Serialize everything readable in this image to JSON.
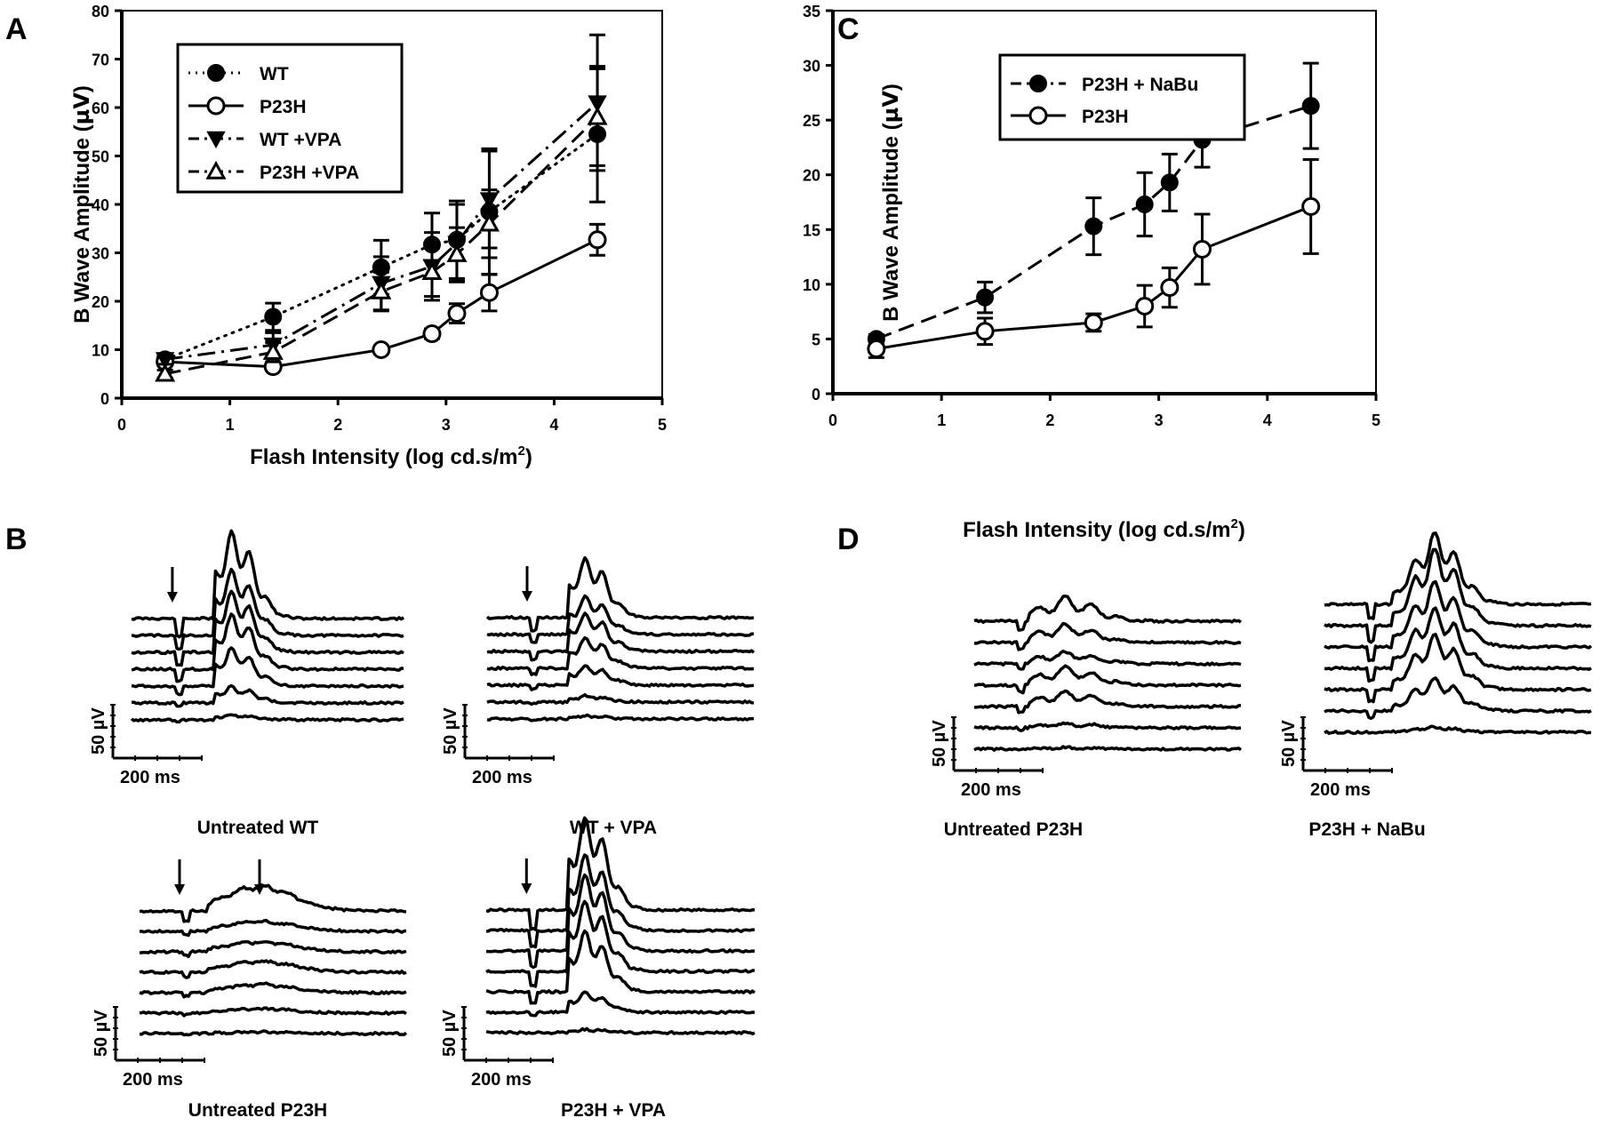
{
  "chart_data": [
    {
      "panel": "A",
      "type": "line",
      "title": "",
      "xlabel": "Flash Intensity (log cd.s/m2)",
      "ylabel": "B Wave Amplitude (µV)",
      "xlim": [
        0,
        5
      ],
      "ylim": [
        0,
        80
      ],
      "xticks": [
        "0",
        "1",
        "2",
        "3",
        "4",
        "5"
      ],
      "yticks": [
        "0",
        "10",
        "20",
        "30",
        "40",
        "50",
        "60",
        "70",
        "80"
      ],
      "legend": "top-left",
      "grid": false,
      "x": [
        0.4,
        1.4,
        2.4,
        2.87,
        3.1,
        3.4,
        4.4
      ],
      "series": [
        {
          "name": "WT",
          "marker": "filled-circle",
          "line": "dotted",
          "values": [
            8.0,
            16.8,
            27.0,
            31.7,
            32.7,
            38.5,
            54.5
          ],
          "errors": [
            1.2,
            2.8,
            5.6,
            6.5,
            8.0,
            13.0,
            14.0
          ]
        },
        {
          "name": "P23H",
          "marker": "open-circle",
          "line": "solid",
          "values": [
            7.5,
            6.5,
            10.0,
            13.3,
            17.5,
            21.8,
            32.7
          ],
          "errors": [
            0.8,
            0.6,
            0.6,
            1.0,
            2.0,
            3.8,
            3.2
          ]
        },
        {
          "name": "WT +VPA",
          "marker": "filled-triangle-down",
          "line": "dash-dot",
          "values": [
            8.0,
            11.0,
            23.7,
            27.2,
            32.0,
            41.0,
            61.0
          ],
          "errors": [
            1.0,
            2.5,
            5.5,
            7.0,
            8.0,
            10.0,
            14.0
          ]
        },
        {
          "name": "P23H +VPA",
          "marker": "open-triangle-up",
          "line": "dashed",
          "values": [
            5.0,
            9.5,
            22.0,
            26.0,
            29.7,
            36.0,
            58.0
          ],
          "errors": [
            0.8,
            2.0,
            4.0,
            5.0,
            5.5,
            7.0,
            10.0
          ]
        }
      ]
    },
    {
      "panel": "C",
      "type": "line",
      "title": "",
      "xlabel": "Flash Intensity (log cd.s/m2)",
      "ylabel": "B Wave Amplitude (µV)",
      "xlim": [
        0,
        5
      ],
      "ylim": [
        0,
        35
      ],
      "xticks": [
        "0",
        "1",
        "2",
        "3",
        "4",
        "5"
      ],
      "yticks": [
        "0",
        "5",
        "10",
        "15",
        "20",
        "25",
        "30",
        "35"
      ],
      "legend": "top-left",
      "grid": false,
      "x": [
        0.4,
        1.4,
        2.4,
        2.87,
        3.1,
        3.4,
        4.4
      ],
      "series": [
        {
          "name": "P23H + NaBu",
          "marker": "filled-circle",
          "line": "dashed",
          "values": [
            5.0,
            8.8,
            15.3,
            17.3,
            19.3,
            23.2,
            26.3
          ],
          "errors": [
            0.4,
            1.4,
            2.6,
            2.9,
            2.6,
            2.5,
            3.9
          ]
        },
        {
          "name": "P23H",
          "marker": "open-circle",
          "line": "solid",
          "values": [
            4.1,
            5.7,
            6.5,
            8.0,
            9.7,
            13.2,
            17.1
          ],
          "errors": [
            0.8,
            1.2,
            0.8,
            1.9,
            1.8,
            3.2,
            4.3
          ]
        }
      ]
    }
  ],
  "panels": {
    "A": {
      "label": "A"
    },
    "B": {
      "label": "B",
      "groups": [
        {
          "title": "Untreated WT",
          "scale_v": "50 µV",
          "scale_t": "200 ms"
        },
        {
          "title": "WT + VPA",
          "scale_v": "50 µV",
          "scale_t": "200 ms"
        },
        {
          "title": "Untreated P23H",
          "scale_v": "50 µV",
          "scale_t": "200 ms"
        },
        {
          "title": "P23H + VPA",
          "scale_v": "50 µV",
          "scale_t": "200 ms"
        }
      ]
    },
    "C": {
      "label": "C"
    },
    "D": {
      "label": "D",
      "groups": [
        {
          "title": "Untreated P23H",
          "scale_v": "50 µV",
          "scale_t": "200 ms"
        },
        {
          "title": "P23H + NaBu",
          "scale_v": "50 µV",
          "scale_t": "200 ms"
        }
      ]
    }
  },
  "axis_text": {
    "ylabel_main": "B Wave Amplitude (",
    "ylabel_unit": "µV",
    "ylabel_close": ")",
    "xlabel_main": "Flash Intensity (log cd.s/m",
    "xlabel_sup": "2",
    "xlabel_close": ")"
  }
}
